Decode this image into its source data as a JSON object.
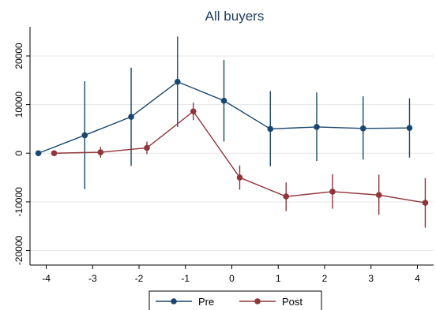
{
  "chart_data": {
    "type": "line",
    "title": "All buyers",
    "xlabel": "",
    "ylabel": "",
    "xlim": [
      -4.35,
      4.35
    ],
    "ylim": [
      -23000,
      26000
    ],
    "x_ticks": [
      -4,
      -3,
      -2,
      -1,
      0,
      1,
      2,
      3,
      4
    ],
    "x_tick_labels": [
      "-4",
      "-3",
      "-2",
      "-1",
      "0",
      "1",
      "2",
      "3",
      "4"
    ],
    "y_ticks": [
      -20000,
      -10000,
      0,
      10000,
      20000
    ],
    "y_tick_labels": [
      "-20000",
      "-10000",
      "0",
      "10000",
      "20000"
    ],
    "grid": true,
    "legend_position": "bottom-center",
    "series": [
      {
        "name": "Pre",
        "color": "#1a476f",
        "x": [
          -4,
          -3,
          -2,
          -1,
          0,
          1,
          2,
          3,
          4
        ],
        "y": [
          0,
          3700,
          7500,
          14700,
          10800,
          5000,
          5400,
          5100,
          5200
        ],
        "ci_low": [
          0,
          -7400,
          -2600,
          5400,
          2400,
          -2700,
          -1600,
          -1300,
          -900
        ],
        "ci_high": [
          0,
          14800,
          17600,
          24000,
          19200,
          12800,
          12500,
          11700,
          11300
        ]
      },
      {
        "name": "Post",
        "color": "#90353b",
        "x": [
          -4,
          -3,
          -2,
          -1,
          0,
          1,
          2,
          3,
          4
        ],
        "y": [
          0,
          200,
          1100,
          8600,
          -5000,
          -8900,
          -7900,
          -8600,
          -10200
        ],
        "ci_low": [
          0,
          -900,
          -200,
          6800,
          -7500,
          -11900,
          -11400,
          -12700,
          -15300
        ],
        "ci_high": [
          0,
          1300,
          2400,
          10400,
          -2500,
          -6000,
          -4300,
          -4400,
          -5100
        ]
      }
    ]
  }
}
